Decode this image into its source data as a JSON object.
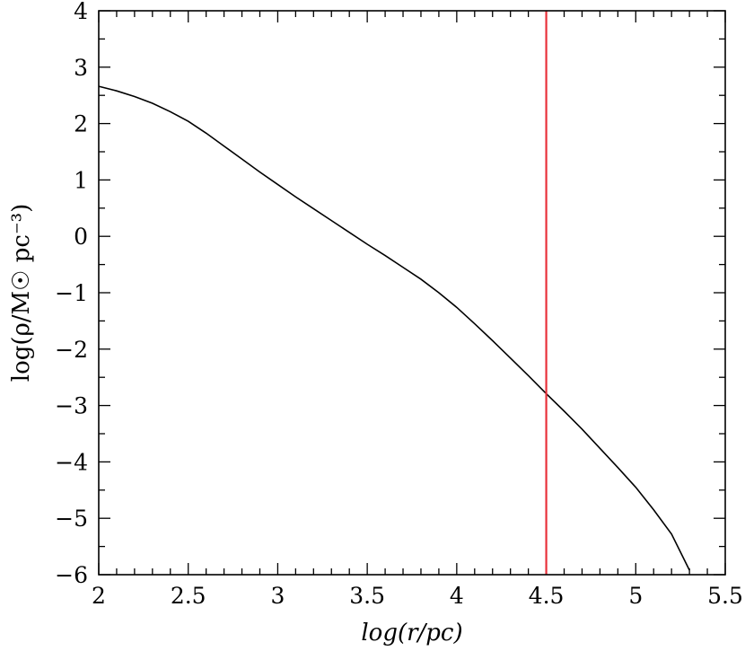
{
  "chart_data": {
    "type": "line",
    "xlabel": "log(r/pc)",
    "ylabel": "log(ρ/M☉ pc⁻³)",
    "xlim": [
      2,
      5.5
    ],
    "ylim": [
      -6,
      4
    ],
    "x_ticks": [
      "2",
      "2.5",
      "3",
      "3.5",
      "4",
      "4.5",
      "5",
      "5.5"
    ],
    "y_ticks": [
      "4",
      "3",
      "2",
      "1",
      "0",
      "−1",
      "−2",
      "−3",
      "−4",
      "−5",
      "−6"
    ],
    "grid": false,
    "series": [
      {
        "color": "#000000",
        "x": [
          2.0,
          2.1,
          2.2,
          2.3,
          2.4,
          2.5,
          2.6,
          2.7,
          2.8,
          2.9,
          3.0,
          3.1,
          3.2,
          3.3,
          3.4,
          3.5,
          3.6,
          3.7,
          3.8,
          3.9,
          4.0,
          4.1,
          4.2,
          4.3,
          4.4,
          4.5,
          4.6,
          4.7,
          4.8,
          4.9,
          5.0,
          5.1,
          5.2,
          5.3
        ],
        "y": [
          2.66,
          2.58,
          2.48,
          2.36,
          2.21,
          2.04,
          1.83,
          1.6,
          1.37,
          1.14,
          0.92,
          0.7,
          0.49,
          0.28,
          0.07,
          -0.14,
          -0.34,
          -0.55,
          -0.76,
          -1.0,
          -1.26,
          -1.55,
          -1.85,
          -2.16,
          -2.47,
          -2.79,
          -3.1,
          -3.42,
          -3.76,
          -4.1,
          -4.45,
          -4.85,
          -5.28,
          -5.92
        ]
      }
    ],
    "vlines": [
      {
        "x": 4.5,
        "color": "#e8303a"
      }
    ]
  }
}
